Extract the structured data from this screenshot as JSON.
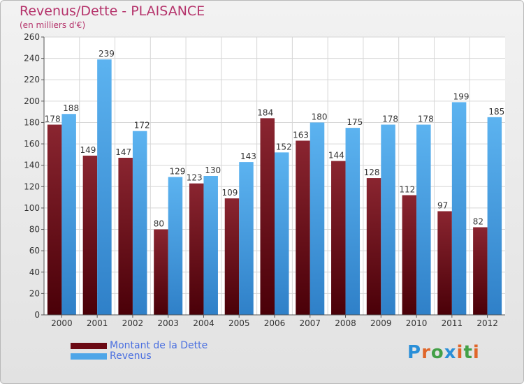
{
  "chart_data": {
    "type": "bar",
    "title": "Revenus/Dette - PLAISANCE",
    "subtitle": "(en milliers d'€)",
    "categories": [
      "2000",
      "2001",
      "2002",
      "2003",
      "2004",
      "2005",
      "2006",
      "2007",
      "2008",
      "2009",
      "2010",
      "2011",
      "2012"
    ],
    "series": [
      {
        "name": "Montant de la Dette",
        "values": [
          178,
          149,
          147,
          80,
          123,
          109,
          184,
          163,
          144,
          128,
          112,
          97,
          82
        ],
        "color": "#6b0a14"
      },
      {
        "name": "Revenus",
        "values": [
          188,
          239,
          172,
          129,
          130,
          143,
          152,
          180,
          175,
          178,
          178,
          199,
          185
        ],
        "color": "#4ea6e8"
      }
    ],
    "ylim": [
      0,
      260
    ],
    "yticks": [
      0,
      20,
      40,
      60,
      80,
      100,
      120,
      140,
      160,
      180,
      200,
      220,
      240,
      260
    ],
    "grid": true,
    "legend": "bottom-left"
  },
  "logo": {
    "text": "Proxiti"
  }
}
